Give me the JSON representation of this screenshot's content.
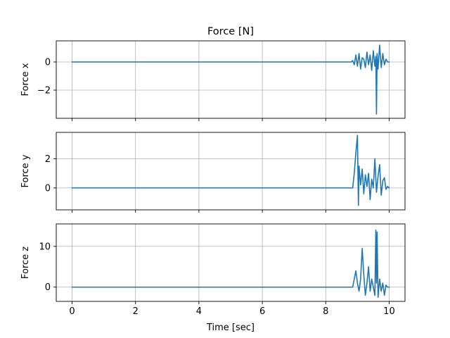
{
  "chart_data": {
    "type": "line",
    "title": "Force [N]",
    "xlabel": "Time [sec]",
    "xlim": [
      -0.5,
      10.5
    ],
    "xticks": [
      0,
      2,
      4,
      6,
      8,
      10
    ],
    "xtick_labels": [
      "0",
      "2",
      "4",
      "6",
      "8",
      "10"
    ],
    "grid": true,
    "line_color": "#1f77b4",
    "subplots": [
      {
        "ylabel": "Force x",
        "ylim": [
          -4.0,
          1.5
        ],
        "yticks": [
          -2,
          0
        ],
        "ytick_labels": [
          "−2",
          "0"
        ],
        "series": [
          {
            "x": [
              0,
              8.8,
              8.85,
              8.9,
              8.95,
              9.0,
              9.05,
              9.1,
              9.15,
              9.2,
              9.25,
              9.3,
              9.35,
              9.4,
              9.45,
              9.5,
              9.55,
              9.58,
              9.6,
              9.62,
              9.65,
              9.7,
              9.75,
              9.8,
              9.85,
              9.9,
              9.95,
              10.0
            ],
            "y": [
              0,
              0,
              0.1,
              -0.2,
              0.5,
              -0.3,
              0.6,
              -0.5,
              0.3,
              0.2,
              -0.4,
              0.7,
              -0.2,
              0.5,
              -0.6,
              0.8,
              -0.3,
              0.4,
              -3.7,
              0.6,
              -0.5,
              1.2,
              -0.4,
              0.6,
              -0.2,
              0.2,
              0.0,
              0.0
            ]
          }
        ]
      },
      {
        "ylabel": "Force y",
        "ylim": [
          -1.5,
          3.8
        ],
        "yticks": [
          0,
          2
        ],
        "ytick_labels": [
          "0",
          "2"
        ],
        "series": [
          {
            "x": [
              0,
              8.85,
              8.9,
              8.95,
              9.0,
              9.03,
              9.05,
              9.1,
              9.15,
              9.2,
              9.25,
              9.3,
              9.35,
              9.4,
              9.45,
              9.5,
              9.55,
              9.6,
              9.65,
              9.7,
              9.75,
              9.8,
              9.85,
              9.9,
              9.95,
              10.0
            ],
            "y": [
              0,
              0,
              1.0,
              2.4,
              3.6,
              -1.2,
              1.5,
              0.2,
              1.3,
              -0.4,
              0.9,
              0.1,
              1.0,
              -0.8,
              0.6,
              0.0,
              2.0,
              -0.3,
              0.8,
              1.6,
              -0.5,
              0.5,
              0.7,
              -0.1,
              0.1,
              0.0
            ]
          }
        ]
      },
      {
        "ylabel": "Force z",
        "ylim": [
          -3.5,
          15.5
        ],
        "yticks": [
          0,
          10
        ],
        "ytick_labels": [
          "0",
          "10"
        ],
        "series": [
          {
            "x": [
              0,
              8.85,
              8.9,
              8.95,
              9.0,
              9.05,
              9.1,
              9.15,
              9.2,
              9.25,
              9.3,
              9.35,
              9.4,
              9.45,
              9.5,
              9.55,
              9.58,
              9.6,
              9.62,
              9.65,
              9.7,
              9.75,
              9.8,
              9.85,
              9.9,
              9.95,
              10.0
            ],
            "y": [
              0,
              0,
              2.0,
              4.0,
              1.0,
              -1.0,
              2.0,
              9.5,
              3.0,
              -2.0,
              1.0,
              5.0,
              -1.0,
              2.0,
              0.0,
              -2.0,
              14.0,
              1.0,
              13.5,
              -2.5,
              2.0,
              -1.0,
              1.0,
              -2.0,
              0.5,
              0.0,
              0.0
            ]
          }
        ]
      }
    ]
  }
}
